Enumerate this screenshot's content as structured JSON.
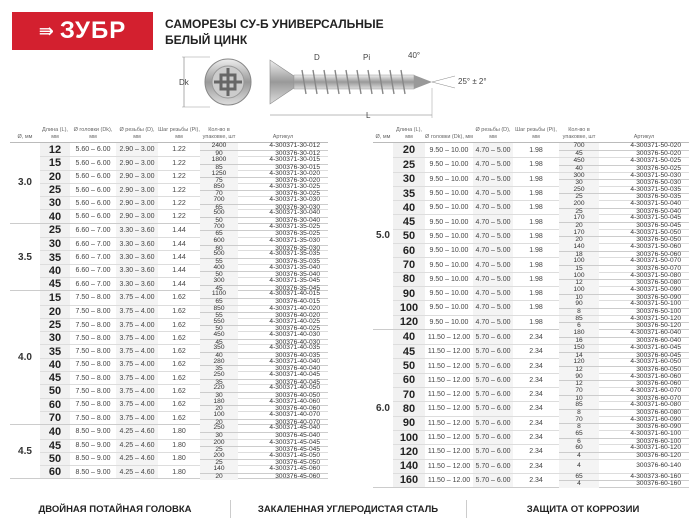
{
  "brand": {
    "logo_text": "ЗУБР",
    "color": "#d3202f"
  },
  "title": {
    "line1": "САМОРЕЗЫ СУ-Б УНИВЕРСАЛЬНЫЕ",
    "line2": "БЕЛЫЙ ЦИНК"
  },
  "diagram": {
    "dk": "Dk",
    "d": "D",
    "pi": "Pi",
    "angle_thread": "40°",
    "angle_tip": "25° ± 2°",
    "length": "L"
  },
  "headers": {
    "dia": "Ø, мм",
    "len": "Длина (L), мм",
    "dk": "Ø головки (Dk), мм",
    "d": "Ø резьбы (D), мм",
    "pi": "Шаг резьбы (Pi), мм",
    "qty": "Кол-во в упаковке, шт",
    "art": "Артикул"
  },
  "left_groups": [
    {
      "dia": "3.0",
      "dk": "5.60 – 6.00",
      "d": "2.90 – 3.00",
      "pi": "1.22",
      "rows": [
        {
          "len": "12",
          "packs": [
            {
              "q": "2400",
              "a": "4-300371-30-012"
            },
            {
              "q": "90",
              "a": "300376-30-012"
            }
          ]
        },
        {
          "len": "15",
          "packs": [
            {
              "q": "1800",
              "a": "4-300371-30-015"
            },
            {
              "q": "85",
              "a": "300376-30-015"
            }
          ]
        },
        {
          "len": "20",
          "packs": [
            {
              "q": "1250",
              "a": "4-300371-30-020"
            },
            {
              "q": "75",
              "a": "300376-30-020"
            }
          ]
        },
        {
          "len": "25",
          "packs": [
            {
              "q": "850",
              "a": "4-300371-30-025"
            },
            {
              "q": "70",
              "a": "300376-30-025"
            }
          ]
        },
        {
          "len": "30",
          "packs": [
            {
              "q": "700",
              "a": "4-300371-30-030"
            },
            {
              "q": "65",
              "a": "300376-30-030"
            }
          ]
        },
        {
          "len": "40",
          "packs": [
            {
              "q": "500",
              "a": "4-300371-30-040"
            },
            {
              "q": "50",
              "a": "300376-30-040"
            }
          ]
        }
      ]
    },
    {
      "dia": "3.5",
      "dk": "6.60 – 7.00",
      "d": "3.30 – 3.60",
      "pi": "1.44",
      "rows": [
        {
          "len": "25",
          "packs": [
            {
              "q": "700",
              "a": "4-300371-35-025"
            },
            {
              "q": "65",
              "a": "300376-35-025"
            }
          ]
        },
        {
          "len": "30",
          "packs": [
            {
              "q": "600",
              "a": "4-300371-35-030"
            },
            {
              "q": "60",
              "a": "300376-35-030"
            }
          ]
        },
        {
          "len": "35",
          "packs": [
            {
              "q": "500",
              "a": "4-300371-35-035"
            },
            {
              "q": "55",
              "a": "300376-35-035"
            }
          ]
        },
        {
          "len": "40",
          "packs": [
            {
              "q": "400",
              "a": "4-300371-35-040"
            },
            {
              "q": "50",
              "a": "300376-35-040"
            }
          ]
        },
        {
          "len": "45",
          "packs": [
            {
              "q": "300",
              "a": "4-300371-35-045"
            },
            {
              "q": "45",
              "a": "300376-35-045"
            }
          ]
        }
      ]
    },
    {
      "dia": "4.0",
      "dk": "7.50 – 8.00",
      "d": "3.75 – 4.00",
      "pi": "1.62",
      "rows": [
        {
          "len": "15",
          "packs": [
            {
              "q": "1100",
              "a": "4-300371-40-015"
            },
            {
              "q": "65",
              "a": "300376-40-015"
            }
          ]
        },
        {
          "len": "20",
          "packs": [
            {
              "q": "850",
              "a": "4-300371-40-020"
            },
            {
              "q": "55",
              "a": "300376-40-020"
            }
          ]
        },
        {
          "len": "25",
          "packs": [
            {
              "q": "550",
              "a": "4-300371-40-025"
            },
            {
              "q": "50",
              "a": "300376-40-025"
            }
          ]
        },
        {
          "len": "30",
          "packs": [
            {
              "q": "450",
              "a": "4-300371-40-030"
            },
            {
              "q": "45",
              "a": "300376-40-030"
            }
          ]
        },
        {
          "len": "35",
          "packs": [
            {
              "q": "350",
              "a": "4-300371-40-035"
            },
            {
              "q": "40",
              "a": "300376-40-035"
            }
          ]
        },
        {
          "len": "40",
          "packs": [
            {
              "q": "280",
              "a": "4-300371-40-040"
            },
            {
              "q": "35",
              "a": "300376-40-040"
            }
          ]
        },
        {
          "len": "45",
          "packs": [
            {
              "q": "250",
              "a": "4-300371-40-045"
            },
            {
              "q": "35",
              "a": "300376-40-045"
            }
          ]
        },
        {
          "len": "50",
          "packs": [
            {
              "q": "220",
              "a": "4-300371-40-050"
            },
            {
              "q": "30",
              "a": "300376-40-050"
            }
          ]
        },
        {
          "len": "60",
          "packs": [
            {
              "q": "180",
              "a": "4-300371-40-060"
            },
            {
              "q": "20",
              "a": "300376-40-060"
            }
          ]
        },
        {
          "len": "70",
          "packs": [
            {
              "q": "100",
              "a": "4-300371-40-070"
            },
            {
              "q": "20",
              "a": "300376-40-070"
            }
          ]
        }
      ]
    },
    {
      "dia": "4.5",
      "dk": "8.50 – 9.00",
      "d": "4.25 – 4.60",
      "pi": "1.80",
      "rows": [
        {
          "len": "40",
          "packs": [
            {
              "q": "250",
              "a": "4-300371-45-040"
            },
            {
              "q": "30",
              "a": "300376-45-040"
            }
          ]
        },
        {
          "len": "45",
          "packs": [
            {
              "q": "200",
              "a": "4-300371-45-045"
            },
            {
              "q": "25",
              "a": "300376-45-045"
            }
          ]
        },
        {
          "len": "50",
          "packs": [
            {
              "q": "200",
              "a": "4-300371-45-050"
            },
            {
              "q": "25",
              "a": "300376-45-050"
            }
          ]
        },
        {
          "len": "60",
          "packs": [
            {
              "q": "140",
              "a": "4-300371-45-060"
            },
            {
              "q": "20",
              "a": "300376-45-060"
            }
          ]
        }
      ]
    }
  ],
  "right_groups": [
    {
      "dia": "5.0",
      "dk": "9.50 – 10.00",
      "d": "4.70 – 5.00",
      "pi": "1.98",
      "rows": [
        {
          "len": "20",
          "packs": [
            {
              "q": "700",
              "a": "4-300371-50-020"
            },
            {
              "q": "45",
              "a": "300376-50-020"
            }
          ]
        },
        {
          "len": "25",
          "packs": [
            {
              "q": "450",
              "a": "4-300371-50-025"
            },
            {
              "q": "40",
              "a": "300376-50-025"
            }
          ]
        },
        {
          "len": "30",
          "packs": [
            {
              "q": "300",
              "a": "4-300371-50-030"
            },
            {
              "q": "30",
              "a": "300376-50-030"
            }
          ]
        },
        {
          "len": "35",
          "packs": [
            {
              "q": "250",
              "a": "4-300371-50-035"
            },
            {
              "q": "25",
              "a": "300376-50-035"
            }
          ]
        },
        {
          "len": "40",
          "packs": [
            {
              "q": "200",
              "a": "4-300371-50-040"
            },
            {
              "q": "25",
              "a": "300376-50-040"
            }
          ]
        },
        {
          "len": "45",
          "packs": [
            {
              "q": "170",
              "a": "4-300371-50-045"
            },
            {
              "q": "20",
              "a": "300376-50-045"
            }
          ]
        },
        {
          "len": "50",
          "packs": [
            {
              "q": "170",
              "a": "4-300371-50-050"
            },
            {
              "q": "20",
              "a": "300376-50-050"
            }
          ]
        },
        {
          "len": "60",
          "packs": [
            {
              "q": "140",
              "a": "4-300371-50-060"
            },
            {
              "q": "18",
              "a": "300376-50-060"
            }
          ]
        },
        {
          "len": "70",
          "packs": [
            {
              "q": "100",
              "a": "4-300371-50-070"
            },
            {
              "q": "15",
              "a": "300376-50-070"
            }
          ]
        },
        {
          "len": "80",
          "packs": [
            {
              "q": "100",
              "a": "4-300371-50-080"
            },
            {
              "q": "12",
              "a": "300376-50-080"
            }
          ]
        },
        {
          "len": "90",
          "packs": [
            {
              "q": "100",
              "a": "4-300371-50-090"
            },
            {
              "q": "10",
              "a": "300376-50-090"
            }
          ]
        },
        {
          "len": "100",
          "packs": [
            {
              "q": "90",
              "a": "4-300371-50-100"
            },
            {
              "q": "8",
              "a": "300376-50-100"
            }
          ]
        },
        {
          "len": "120",
          "packs": [
            {
              "q": "85",
              "a": "4-300371-50-120"
            },
            {
              "q": "6",
              "a": "300376-50-120"
            }
          ]
        }
      ]
    },
    {
      "dia": "6.0",
      "dk": "11.50 – 12.00",
      "d": "5.70 – 6.00",
      "pi": "2.34",
      "rows": [
        {
          "len": "40",
          "packs": [
            {
              "q": "180",
              "a": "4-300371-60-040"
            },
            {
              "q": "16",
              "a": "300376-60-040"
            }
          ]
        },
        {
          "len": "45",
          "packs": [
            {
              "q": "150",
              "a": "4-300371-60-045"
            },
            {
              "q": "14",
              "a": "300376-60-045"
            }
          ]
        },
        {
          "len": "50",
          "packs": [
            {
              "q": "120",
              "a": "4-300371-60-050"
            },
            {
              "q": "12",
              "a": "300376-60-050"
            }
          ]
        },
        {
          "len": "60",
          "packs": [
            {
              "q": "90",
              "a": "4-300371-60-060"
            },
            {
              "q": "12",
              "a": "300376-60-060"
            }
          ]
        },
        {
          "len": "70",
          "packs": [
            {
              "q": "70",
              "a": "4-300371-60-070"
            },
            {
              "q": "10",
              "a": "300376-60-070"
            }
          ]
        },
        {
          "len": "80",
          "packs": [
            {
              "q": "85",
              "a": "4-300371-60-080"
            },
            {
              "q": "8",
              "a": "300376-60-080"
            }
          ]
        },
        {
          "len": "90",
          "packs": [
            {
              "q": "70",
              "a": "4-300371-60-090"
            },
            {
              "q": "8",
              "a": "300376-60-090"
            }
          ]
        },
        {
          "len": "100",
          "packs": [
            {
              "q": "65",
              "a": "4-300371-60-100"
            },
            {
              "q": "6",
              "a": "300376-60-100"
            }
          ]
        },
        {
          "len": "120",
          "packs": [
            {
              "q": "60",
              "a": "4-300371-60-120"
            },
            {
              "q": "4",
              "a": "300376-60-120"
            }
          ]
        },
        {
          "len": "140",
          "packs": [
            {
              "q": "4",
              "a": "300376-60-140"
            }
          ]
        },
        {
          "len": "160",
          "packs": [
            {
              "q": "65",
              "a": "4-300373-60-160"
            },
            {
              "q": "4",
              "a": "300376-60-160"
            }
          ]
        }
      ]
    }
  ],
  "footer": [
    "ДВОЙНАЯ ПОТАЙНАЯ ГОЛОВКА",
    "ЗАКАЛЕННАЯ УГЛЕРОДИСТАЯ СТАЛЬ",
    "ЗАЩИТА ОТ КОРРОЗИИ"
  ]
}
